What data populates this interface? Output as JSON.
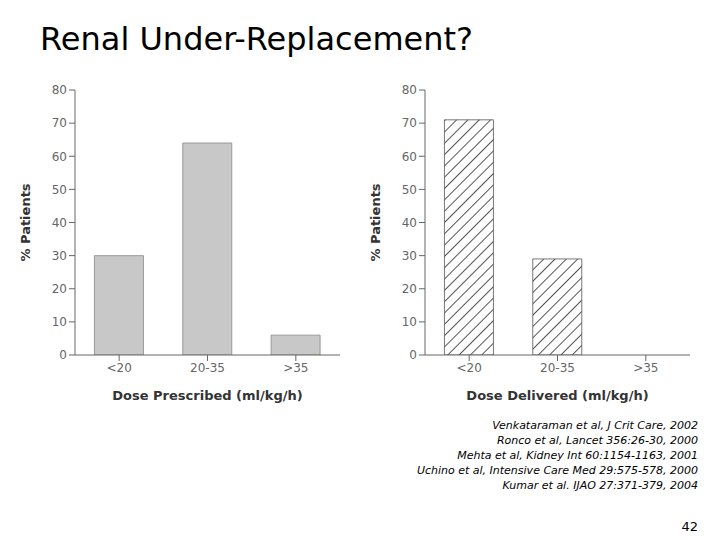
{
  "title": "Renal Under-Replacement?",
  "annotations": [
    "Venkataraman et al, J Crit Care, 2002",
    "Ronco et al, Lancet 356:26-30, 2000",
    "Mehta et al, Kidney Int 60:1154-1163, 2001",
    "Uchino et al, Intensive Care Med 29:575-578, 2000",
    "Kumar et al. IJAO 27:371-379, 2004",
    "42"
  ],
  "chart_data": [
    {
      "type": "bar",
      "categories": [
        "<20",
        "20-35",
        ">35"
      ],
      "values": [
        30,
        64,
        6
      ],
      "color": "#c8c8c8",
      "xlabel": "Dose Prescribed (ml/kg/h)",
      "ylabel": "% Patients",
      "ylim": [
        0,
        80
      ],
      "yticks": [
        0,
        10,
        20,
        30,
        40,
        50,
        60,
        70,
        80
      ]
    },
    {
      "type": "bar",
      "categories": [
        "<20",
        "20-35",
        ">35"
      ],
      "values": [
        71,
        29,
        0
      ],
      "color": "#555555",
      "xlabel": "Dose Delivered (ml/kg/h)",
      "ylabel": "% Patients",
      "ylim": [
        0,
        80
      ],
      "yticks": [
        0,
        10,
        20,
        30,
        40,
        50,
        60,
        70,
        80
      ]
    }
  ]
}
